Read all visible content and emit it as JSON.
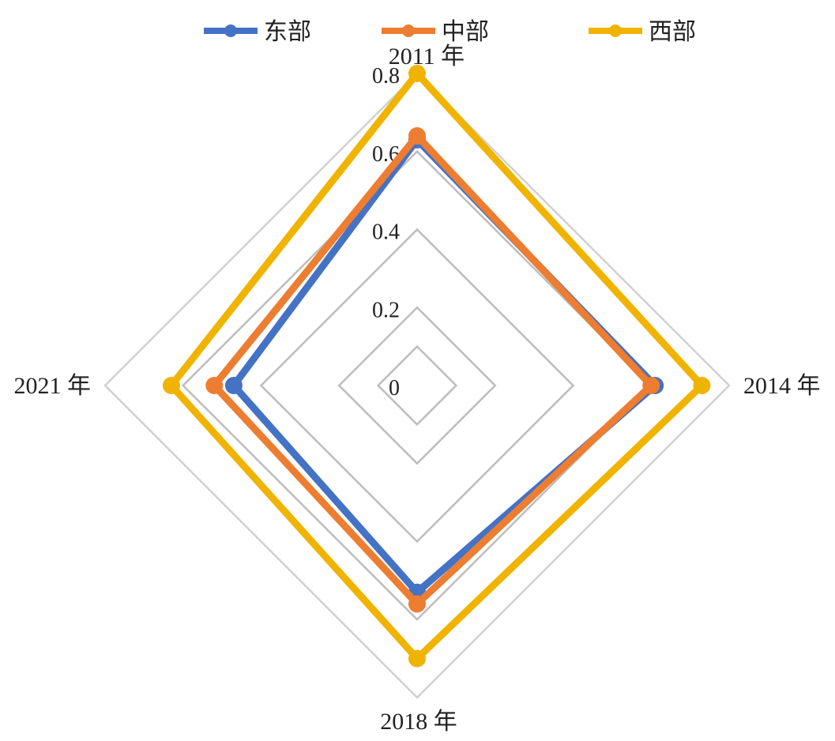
{
  "chart_data": {
    "type": "radar",
    "title": "",
    "categories": [
      "2011 年",
      "2014 年",
      "2018 年",
      "2021 年"
    ],
    "radial_axis": {
      "ticks": [
        "0",
        "0.2",
        "0.4",
        "0.6",
        "0.8"
      ],
      "range": [
        0,
        0.8
      ]
    },
    "legend_position": "top",
    "grid": true,
    "series": [
      {
        "name": "东部",
        "color": "#4472C4",
        "values": [
          0.63,
          0.61,
          0.53,
          0.47
        ]
      },
      {
        "name": "中部",
        "color": "#ED7D31",
        "values": [
          0.64,
          0.6,
          0.56,
          0.52
        ]
      },
      {
        "name": "西部",
        "color": "#F0B400",
        "values": [
          0.8,
          0.73,
          0.7,
          0.63
        ]
      }
    ]
  }
}
